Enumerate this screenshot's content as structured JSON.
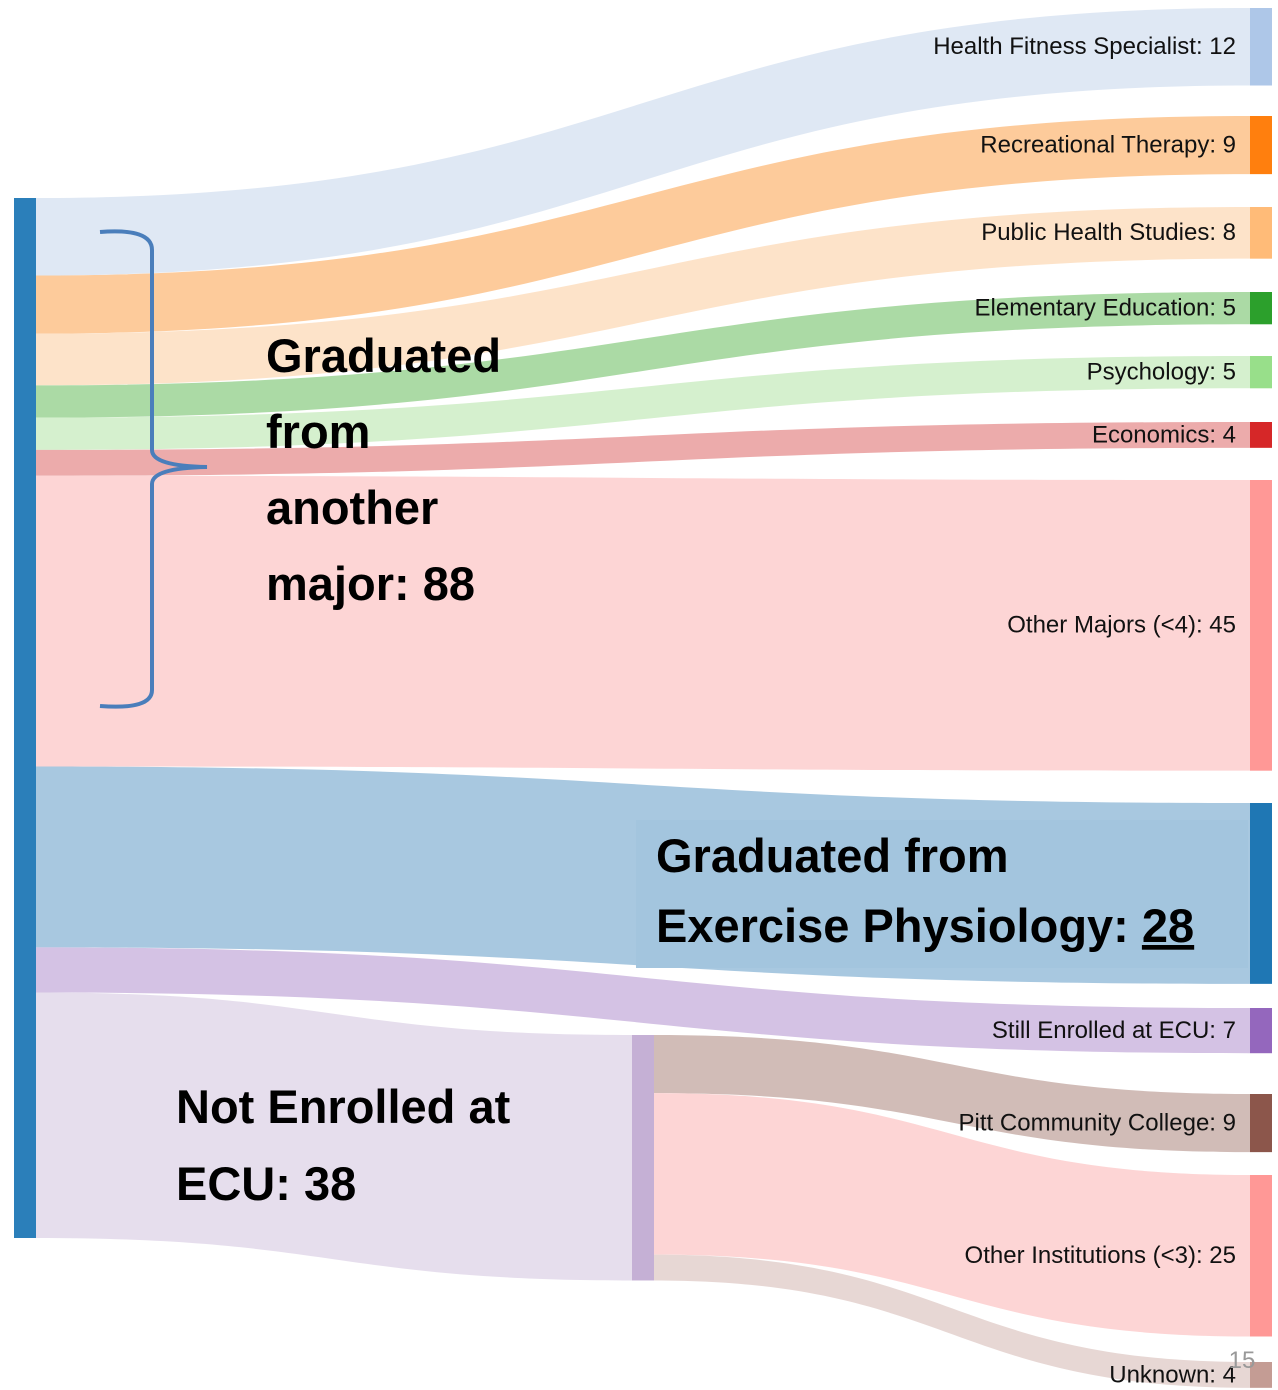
{
  "chart_data": {
    "type": "sankey",
    "source_color": "#2b7fba",
    "targets": [
      {
        "label": "Health Fitness Specialist: 12",
        "value": 12,
        "color": "#aec7e8",
        "link_color": "#dde7f3"
      },
      {
        "label": "Recreational Therapy: 9",
        "value": 9,
        "color": "#ff7f0e",
        "link_color": "#fdc896"
      },
      {
        "label": "Public Health Studies: 8",
        "value": 8,
        "color": "#ffbb78",
        "link_color": "#fde2c6"
      },
      {
        "label": "Elementary Education: 5",
        "value": 5,
        "color": "#2ca02c",
        "link_color": "#a6d8a0"
      },
      {
        "label": "Psychology: 5",
        "value": 5,
        "color": "#98df8a",
        "link_color": "#d3efcb"
      },
      {
        "label": "Economics: 4",
        "value": 4,
        "color": "#d62728",
        "link_color": "#eba6a6"
      },
      {
        "label": "Other Majors (<4): 45",
        "value": 45,
        "color": "#ff9896",
        "link_color": "#fdd3d3"
      },
      {
        "label_lines": [
          "Graduated from",
          "Exercise Physiology: "
        ],
        "label_emphasis": "28",
        "value": 28,
        "color": "#1f77b4",
        "link_color": "#a3c5de"
      },
      {
        "label": "Still Enrolled at ECU: 7",
        "value": 7,
        "color": "#9467bd",
        "link_color": "#d2bfe3"
      },
      {
        "label_lines": [
          "Not Enrolled at",
          "ECU: 38"
        ],
        "value": 38,
        "color": "#c5b0d5",
        "link_color": "#e5dcec",
        "targets": [
          {
            "label": "Pitt Community College: 9",
            "value": 9,
            "color": "#8c564b",
            "link_color": "#cfb8b3"
          },
          {
            "label": "Other Institutions (<3): 25",
            "value": 25,
            "color": "#ff9896",
            "link_color": "#fdd3d3"
          },
          {
            "label": "Unknown: 4",
            "value": 4,
            "color": "#c49c94",
            "link_color": "#e6d5d2"
          }
        ]
      }
    ],
    "annotations": [
      {
        "lines": [
          "Graduated",
          "from",
          "another",
          "major: 88"
        ]
      }
    ],
    "page_number": "15"
  }
}
